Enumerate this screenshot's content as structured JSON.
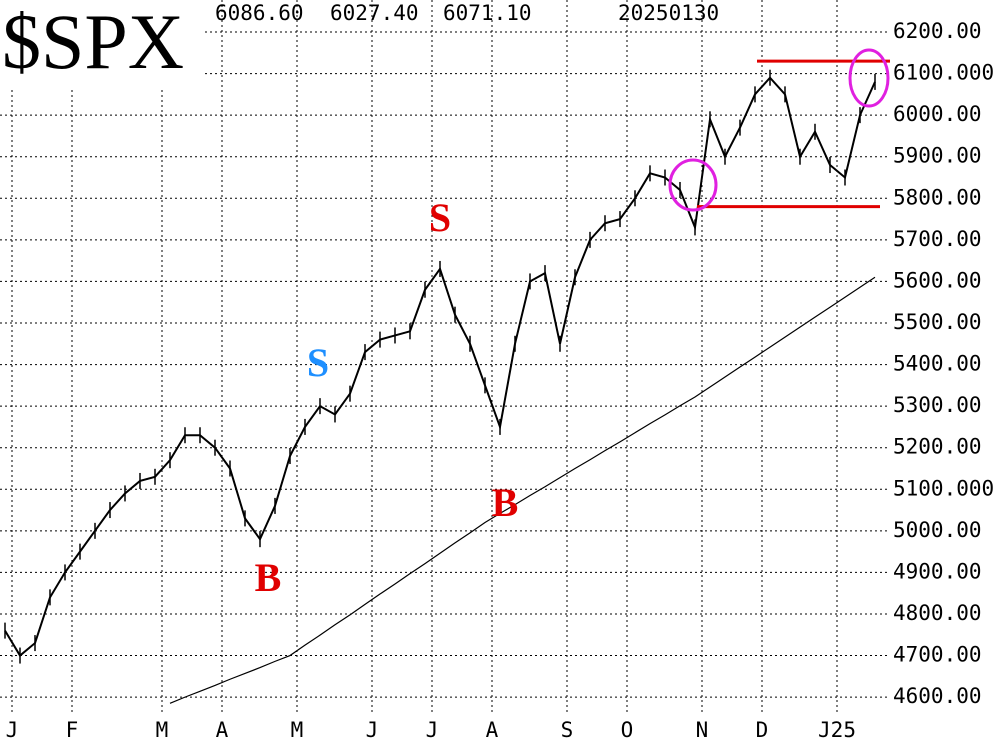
{
  "chart_data": {
    "type": "line",
    "title": "$SPX",
    "header": [
      "6086.60",
      "6027.40",
      "6071.10",
      "20250130"
    ],
    "categories": [
      "J",
      null,
      null,
      null,
      "F",
      null,
      null,
      null,
      null,
      null,
      "M",
      null,
      null,
      null,
      "A",
      null,
      null,
      null,
      null,
      "M",
      null,
      null,
      null,
      null,
      "J",
      null,
      null,
      null,
      "J",
      null,
      null,
      null,
      "A",
      null,
      null,
      null,
      null,
      "S",
      null,
      null,
      null,
      "O",
      null,
      null,
      null,
      null,
      "N",
      null,
      null,
      null,
      "D",
      null,
      null,
      null,
      null,
      "J25",
      null,
      null,
      null
    ],
    "series": [
      {
        "color": "#000000",
        "values": [
          4760,
          4700,
          4730,
          4840,
          4900,
          4950,
          5000,
          5050,
          5090,
          5120,
          5130,
          5170,
          5230,
          5230,
          5200,
          5150,
          5030,
          4980,
          5060,
          5180,
          5250,
          5300,
          5280,
          5330,
          5430,
          5460,
          5470,
          5480,
          5580,
          5630,
          5520,
          5450,
          5350,
          5250,
          5450,
          5600,
          5620,
          5450,
          5610,
          5700,
          5740,
          5750,
          5800,
          5860,
          5850,
          5820,
          5730,
          5990,
          5900,
          5970,
          6050,
          6090,
          6050,
          5900,
          5960,
          5880,
          5850,
          6000,
          6080
        ]
      },
      {
        "color": "#000000",
        "values": [
          null,
          null,
          null,
          null,
          null,
          null,
          null,
          null,
          null,
          null,
          null,
          4585,
          4600,
          4614,
          4628,
          4643,
          4657,
          4671,
          4686,
          4700,
          4725,
          4749,
          4774,
          4798,
          4823,
          4848,
          4872,
          4897,
          4921,
          4946,
          4971,
          4995,
          5020,
          5042,
          5063,
          5085,
          5106,
          5128,
          5150,
          5171,
          5193,
          5214,
          5236,
          5258,
          5279,
          5301,
          5322,
          5346,
          5370,
          5394,
          5418,
          5442,
          5466,
          5490,
          5514,
          5538,
          5562,
          5586,
          5610
        ]
      }
    ],
    "ylim": [
      4557,
      6277
    ],
    "yticks": [
      {
        "value": 4600,
        "label": "4600.00"
      },
      {
        "value": 4700,
        "label": "4700.00"
      },
      {
        "value": 4800,
        "label": "4800.00"
      },
      {
        "value": 4900,
        "label": "4900.00"
      },
      {
        "value": 5000,
        "label": "5000.00"
      },
      {
        "value": 5100,
        "label": "5100.000"
      },
      {
        "value": 5200,
        "label": "5200.00"
      },
      {
        "value": 5300,
        "label": "5300.00"
      },
      {
        "value": 5400,
        "label": "5400.00"
      },
      {
        "value": 5500,
        "label": "5500.00"
      },
      {
        "value": 5600,
        "label": "5600.00"
      },
      {
        "value": 5700,
        "label": "5700.00"
      },
      {
        "value": 5800,
        "label": "5800.00"
      },
      {
        "value": 5900,
        "label": "5900.00"
      },
      {
        "value": 6000,
        "label": "6000.00"
      },
      {
        "value": 6100,
        "label": "6100.000"
      },
      {
        "value": 6200,
        "label": "6200.00"
      }
    ],
    "grid": true,
    "levels": [
      {
        "value": 6130,
        "color": "#e00000"
      },
      {
        "value": 5780,
        "color": "#e00000"
      }
    ],
    "annotations": [
      {
        "text": "S",
        "color": "#1e8fff"
      },
      {
        "text": "S",
        "color": "#e00000"
      },
      {
        "text": "B",
        "color": "#e00000"
      },
      {
        "text": "B",
        "color": "#e00000"
      }
    ]
  }
}
